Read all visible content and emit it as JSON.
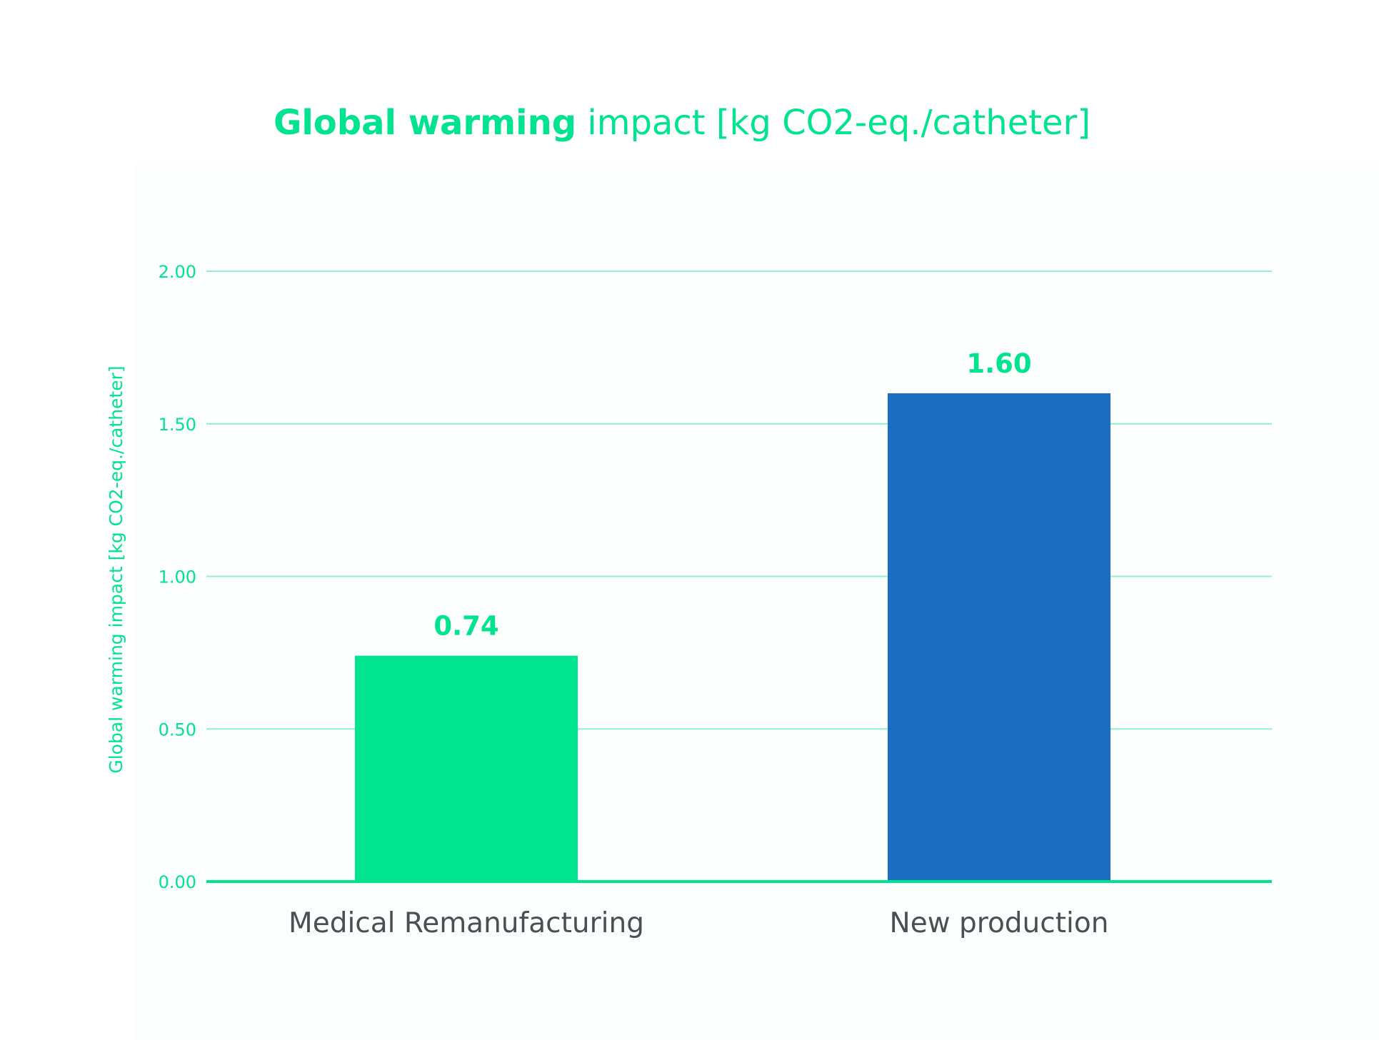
{
  "chart_data": {
    "type": "bar",
    "title_bold": "Global warming",
    "title_rest": " impact [kg CO2-eq./catheter]",
    "ylabel": "Global warming impact [kg CO2-eq./catheter]",
    "xlabel": "",
    "ylim": [
      0,
      2
    ],
    "yticks": [
      "0.00",
      "0.50",
      "1.00",
      "1.50",
      "2.00"
    ],
    "categories": [
      "Medical Remanufacturing",
      "New production"
    ],
    "values": [
      0.74,
      1.6
    ],
    "value_labels": [
      "0.74",
      "1.60"
    ],
    "bar_colors": [
      "#00e38f",
      "#1b6dc1"
    ],
    "grid": true,
    "legend": false
  },
  "colors": {
    "accent": "#00e38f",
    "secondary": "#1b6dc1",
    "gridline": "#8ff0cf",
    "category_text": "#4a4f55"
  }
}
